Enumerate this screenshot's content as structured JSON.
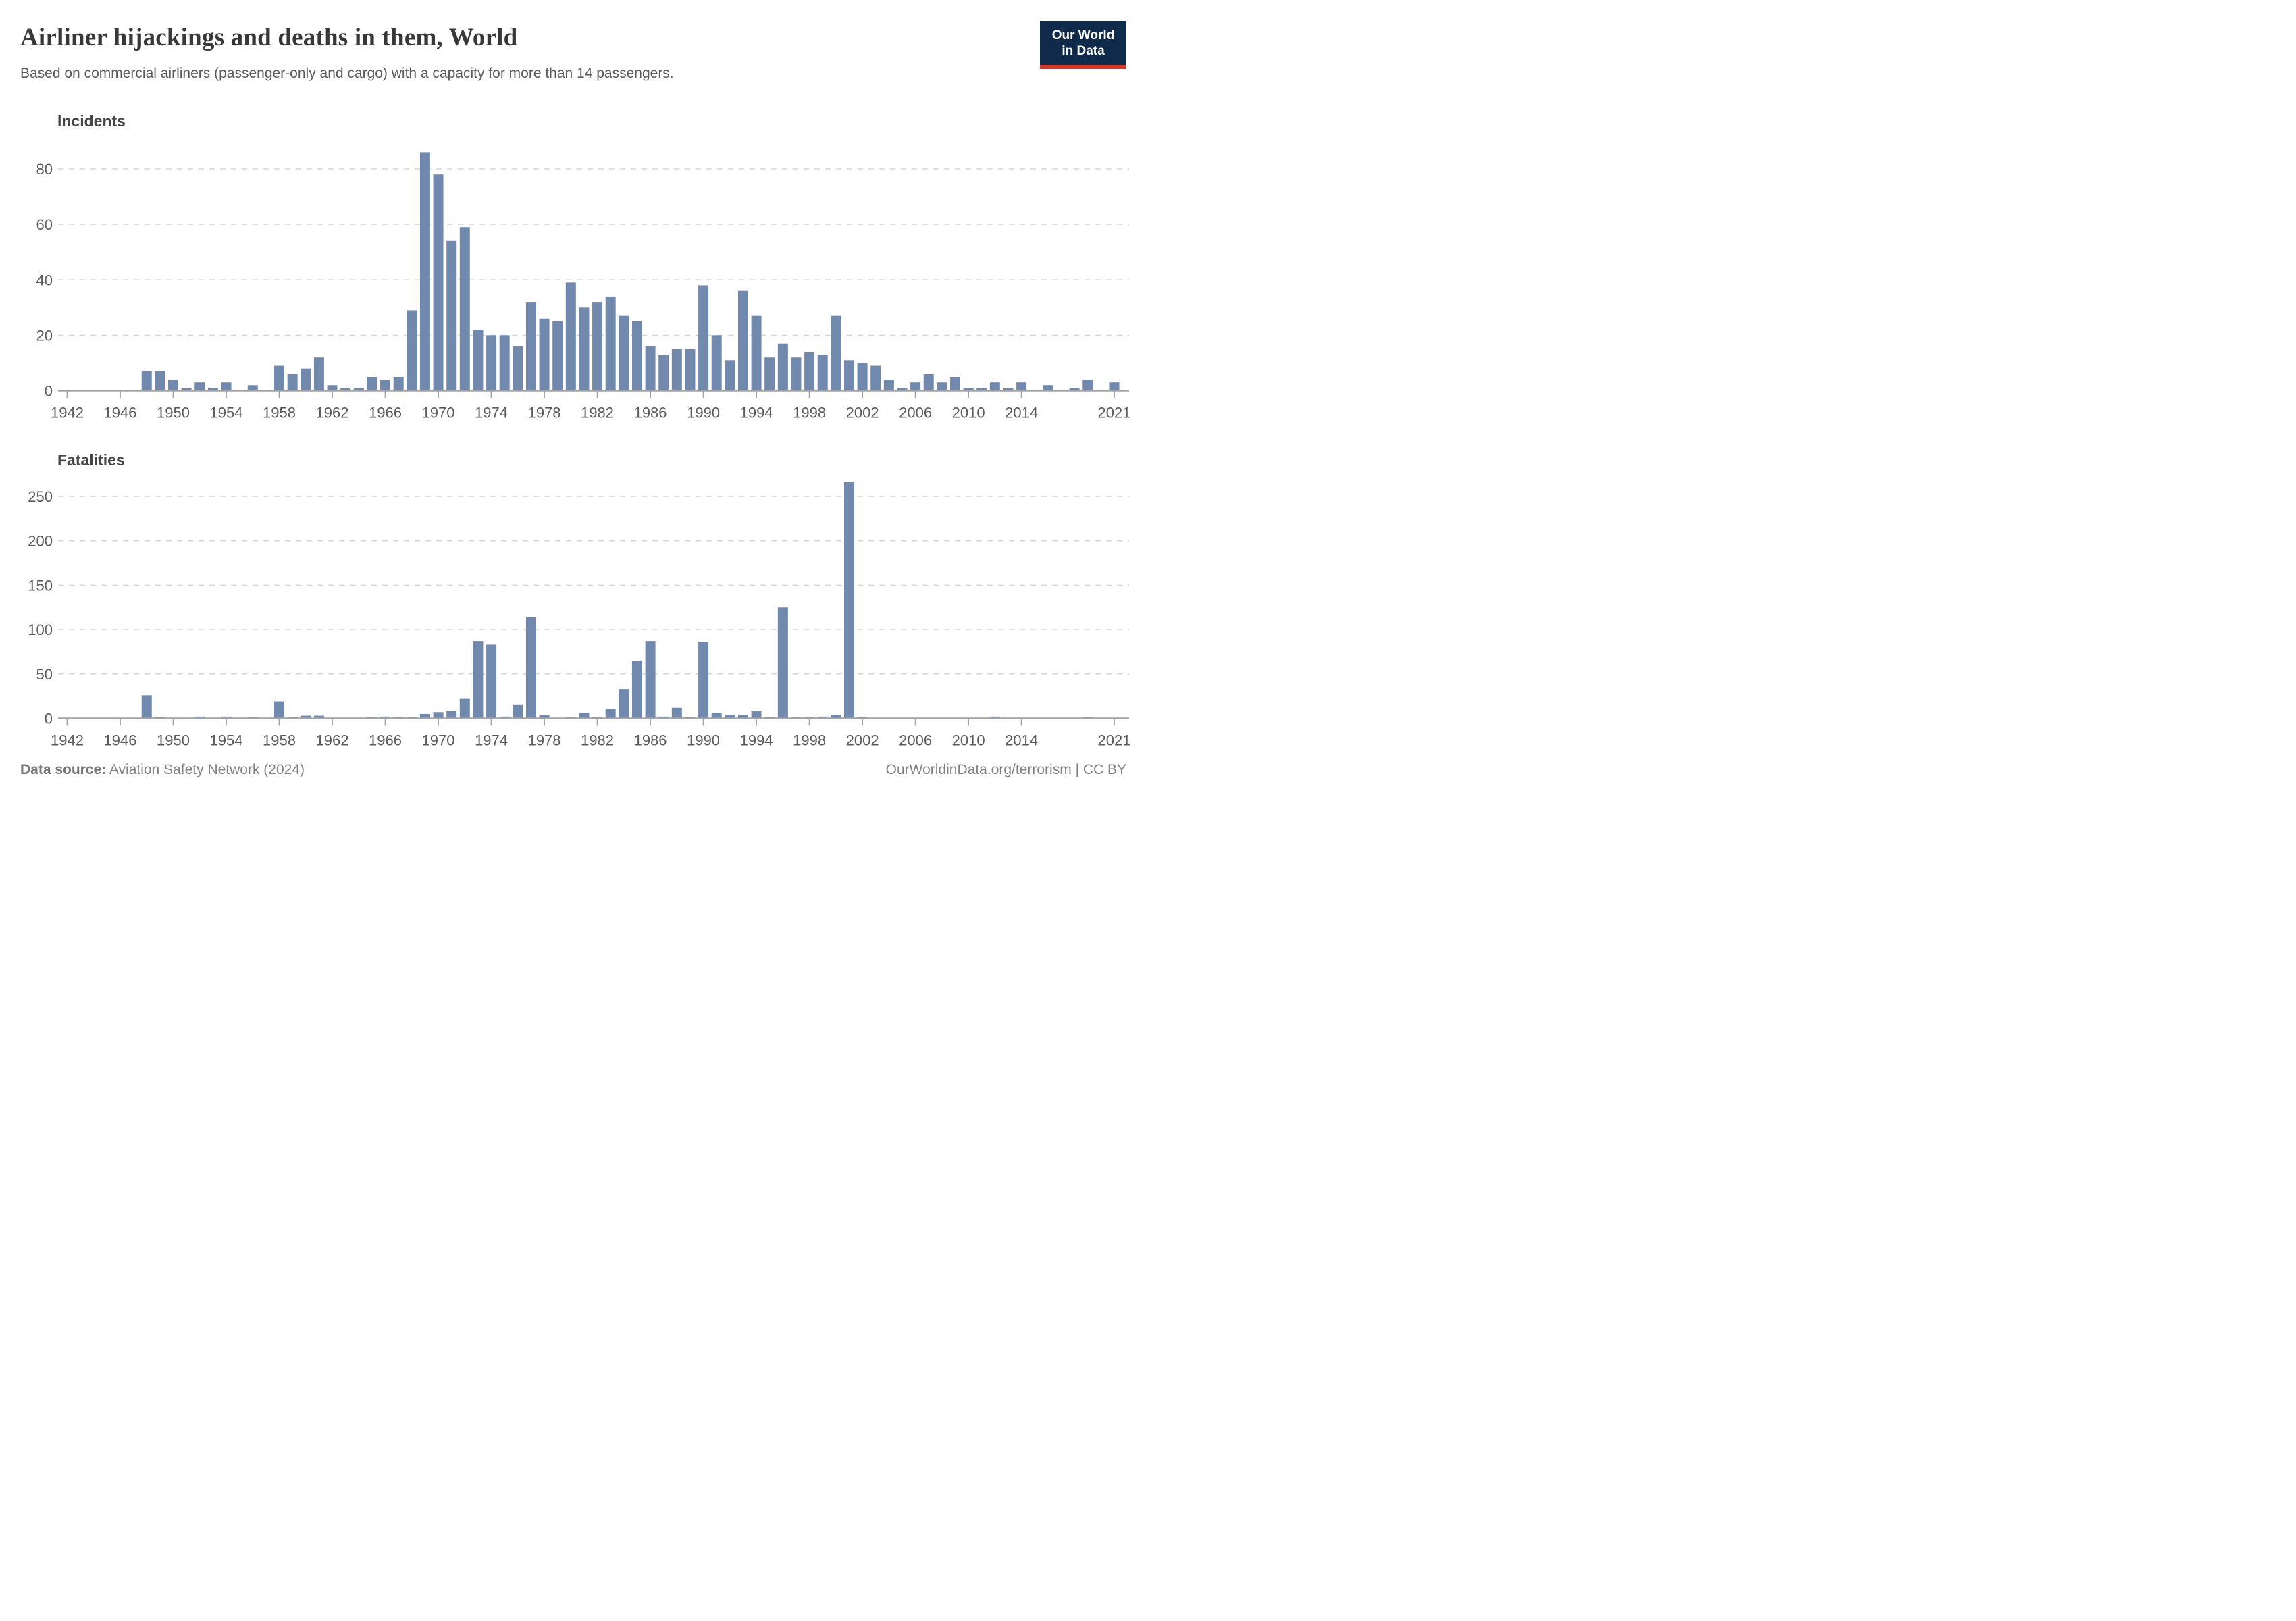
{
  "header": {
    "title": "Airliner hijackings and deaths in them, World",
    "subtitle": "Based on commercial airliners (passenger-only and cargo) with a capacity for more than 14 passengers."
  },
  "logo": {
    "line1": "Our World",
    "line2": "in Data"
  },
  "colors": {
    "bar": "#7289ae",
    "gridline": "#d6d6d6",
    "axis": "#a3a3a3",
    "tick_label": "#5b5b5b",
    "logo_bg": "#102a4c",
    "logo_stripe": "#d8352e"
  },
  "chart_data": [
    {
      "type": "bar",
      "title": "Incidents",
      "xlabel": "",
      "ylabel": "",
      "grid": "dashed horizontal",
      "legend": "none",
      "ylim": [
        0,
        86
      ],
      "y_ticks": [
        0,
        20,
        40,
        60,
        80
      ],
      "x_tick_labels": [
        1942,
        1946,
        1950,
        1954,
        1958,
        1962,
        1966,
        1970,
        1974,
        1978,
        1982,
        1986,
        1990,
        1994,
        1998,
        2002,
        2006,
        2010,
        2014,
        2021
      ],
      "years": [
        1942,
        1943,
        1944,
        1945,
        1946,
        1947,
        1948,
        1949,
        1950,
        1951,
        1952,
        1953,
        1954,
        1955,
        1956,
        1957,
        1958,
        1959,
        1960,
        1961,
        1962,
        1963,
        1964,
        1965,
        1966,
        1967,
        1968,
        1969,
        1970,
        1971,
        1972,
        1973,
        1974,
        1975,
        1976,
        1977,
        1978,
        1979,
        1980,
        1981,
        1982,
        1983,
        1984,
        1985,
        1986,
        1987,
        1988,
        1989,
        1990,
        1991,
        1992,
        1993,
        1994,
        1995,
        1996,
        1997,
        1998,
        1999,
        2000,
        2001,
        2002,
        2003,
        2004,
        2005,
        2006,
        2007,
        2008,
        2009,
        2010,
        2011,
        2012,
        2013,
        2014,
        2015,
        2016,
        2017,
        2018,
        2019,
        2020,
        2021
      ],
      "values": [
        0,
        0,
        0,
        0,
        0,
        0,
        7,
        7,
        4,
        1,
        3,
        1,
        3,
        0,
        2,
        0,
        9,
        6,
        8,
        12,
        2,
        1,
        1,
        5,
        4,
        5,
        29,
        86,
        78,
        54,
        59,
        22,
        20,
        20,
        16,
        32,
        26,
        25,
        39,
        30,
        32,
        34,
        27,
        25,
        16,
        13,
        15,
        15,
        38,
        20,
        11,
        36,
        27,
        12,
        17,
        12,
        14,
        13,
        27,
        11,
        10,
        9,
        4,
        1,
        3,
        6,
        3,
        5,
        1,
        1,
        3,
        1,
        3,
        0,
        2,
        0,
        1,
        4,
        0,
        3
      ]
    },
    {
      "type": "bar",
      "title": "Fatalities",
      "xlabel": "",
      "ylabel": "",
      "grid": "dashed horizontal",
      "legend": "none",
      "ylim": [
        0,
        266
      ],
      "y_ticks": [
        0,
        50,
        100,
        150,
        200,
        250
      ],
      "x_tick_labels": [
        1942,
        1946,
        1950,
        1954,
        1958,
        1962,
        1966,
        1970,
        1974,
        1978,
        1982,
        1986,
        1990,
        1994,
        1998,
        2002,
        2006,
        2010,
        2014,
        2021
      ],
      "years": [
        1942,
        1943,
        1944,
        1945,
        1946,
        1947,
        1948,
        1949,
        1950,
        1951,
        1952,
        1953,
        1954,
        1955,
        1956,
        1957,
        1958,
        1959,
        1960,
        1961,
        1962,
        1963,
        1964,
        1965,
        1966,
        1967,
        1968,
        1969,
        1970,
        1971,
        1972,
        1973,
        1974,
        1975,
        1976,
        1977,
        1978,
        1979,
        1980,
        1981,
        1982,
        1983,
        1984,
        1985,
        1986,
        1987,
        1988,
        1989,
        1990,
        1991,
        1992,
        1993,
        1994,
        1995,
        1996,
        1997,
        1998,
        1999,
        2000,
        2001,
        2002,
        2003,
        2004,
        2005,
        2006,
        2007,
        2008,
        2009,
        2010,
        2011,
        2012,
        2013,
        2014,
        2015,
        2016,
        2017,
        2018,
        2019,
        2020,
        2021
      ],
      "values": [
        0,
        0,
        0,
        0,
        0,
        0,
        26,
        1,
        0,
        0,
        2,
        0,
        2,
        0,
        1,
        0,
        19,
        1,
        3,
        3,
        0,
        0,
        0,
        1,
        2,
        1,
        1,
        5,
        7,
        8,
        22,
        87,
        83,
        2,
        15,
        114,
        4,
        0,
        1,
        6,
        1,
        11,
        33,
        65,
        87,
        2,
        12,
        1,
        86,
        6,
        4,
        4,
        8,
        1,
        125,
        1,
        1,
        2,
        4,
        266,
        1,
        0,
        0,
        0,
        0,
        0,
        0,
        0,
        0,
        0,
        2,
        0,
        0,
        0,
        0,
        0,
        0,
        1,
        0,
        0
      ]
    }
  ],
  "footer": {
    "source_label": "Data source:",
    "source_text": "Aviation Safety Network (2024)",
    "right_text": "OurWorldinData.org/terrorism | CC BY"
  }
}
